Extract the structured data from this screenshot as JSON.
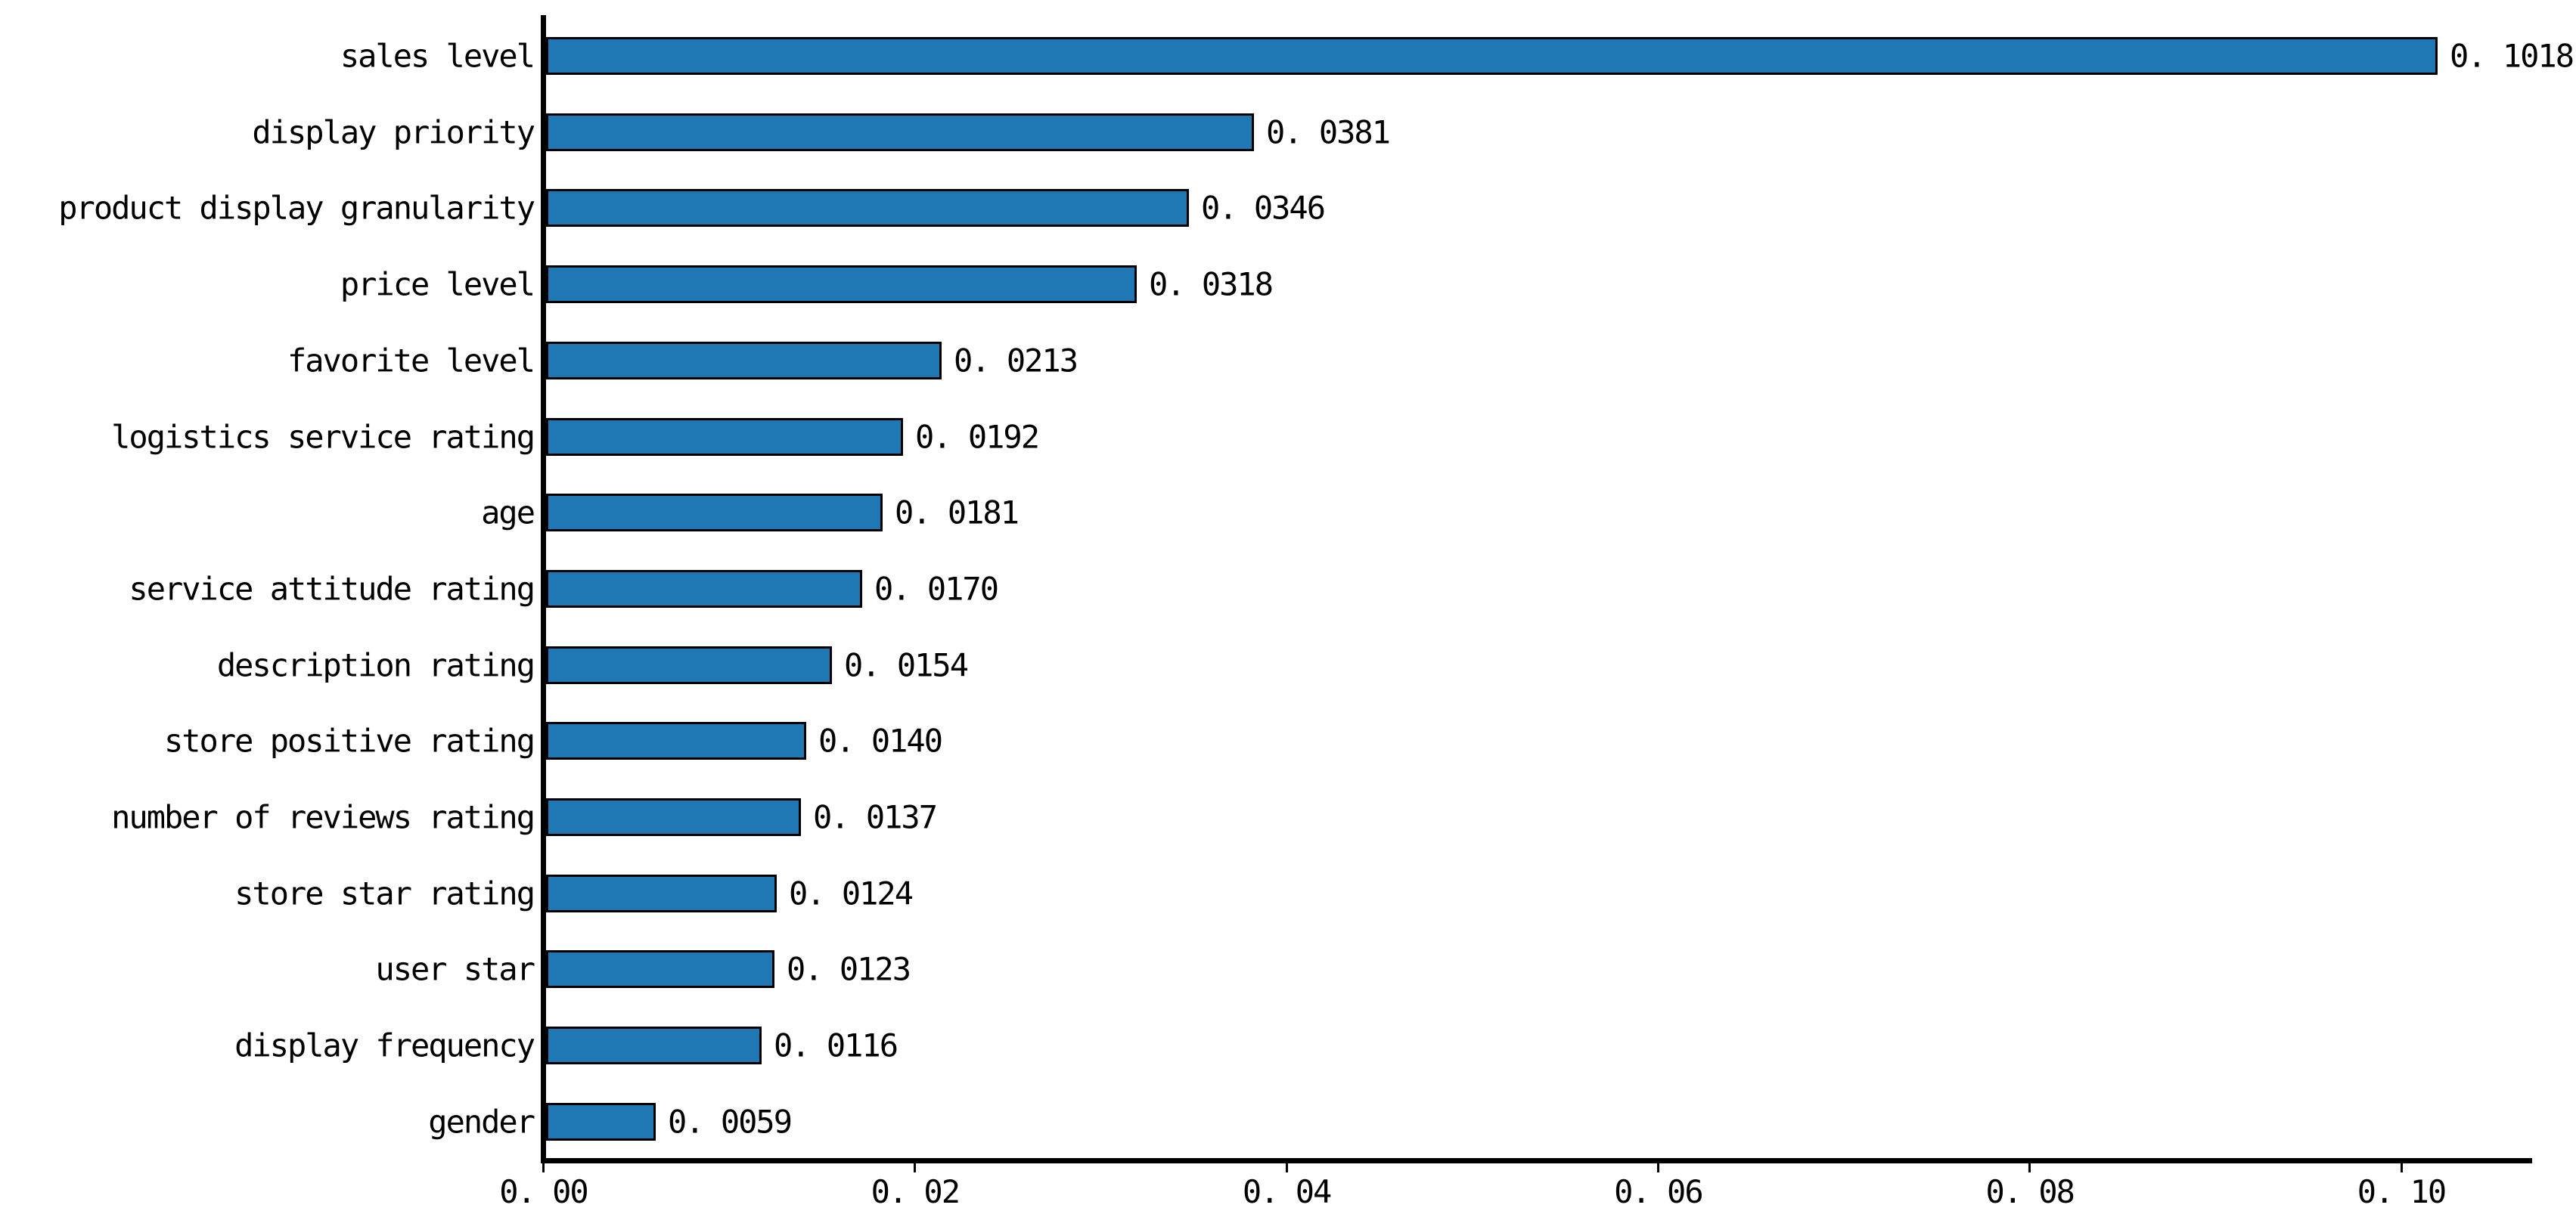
{
  "chart_data": {
    "type": "bar",
    "orientation": "horizontal",
    "title": "",
    "xlabel": "",
    "ylabel": "",
    "categories": [
      "sales level",
      "display priority",
      "product display granularity",
      "price level",
      "favorite level",
      "logistics service rating",
      "age",
      "service attitude rating",
      "description rating",
      "store positive rating",
      "number of reviews rating",
      "store star rating",
      "user star",
      "display frequency",
      "gender"
    ],
    "values": [
      0.1018,
      0.0381,
      0.0346,
      0.0318,
      0.0213,
      0.0192,
      0.0181,
      0.017,
      0.0154,
      0.014,
      0.0137,
      0.0124,
      0.0123,
      0.0116,
      0.0059
    ],
    "value_labels": [
      "0. 1018",
      "0. 0381",
      "0. 0346",
      "0. 0318",
      "0. 0213",
      "0. 0192",
      "0. 0181",
      "0. 0170",
      "0. 0154",
      "0. 0140",
      "0. 0137",
      "0. 0124",
      "0. 0123",
      "0. 0116",
      "0. 0059"
    ],
    "x_ticks": [
      0.0,
      0.02,
      0.04,
      0.06,
      0.08,
      0.1
    ],
    "x_tick_labels": [
      "0. 00",
      "0. 02",
      "0. 04",
      "0. 06",
      "0. 08",
      "0. 10"
    ],
    "xlim": [
      0,
      0.1069
    ],
    "grid": false,
    "legend": false,
    "bar_color": "#1f77b4",
    "bar_edge_color": "#000000",
    "axis_color": "#000000"
  }
}
